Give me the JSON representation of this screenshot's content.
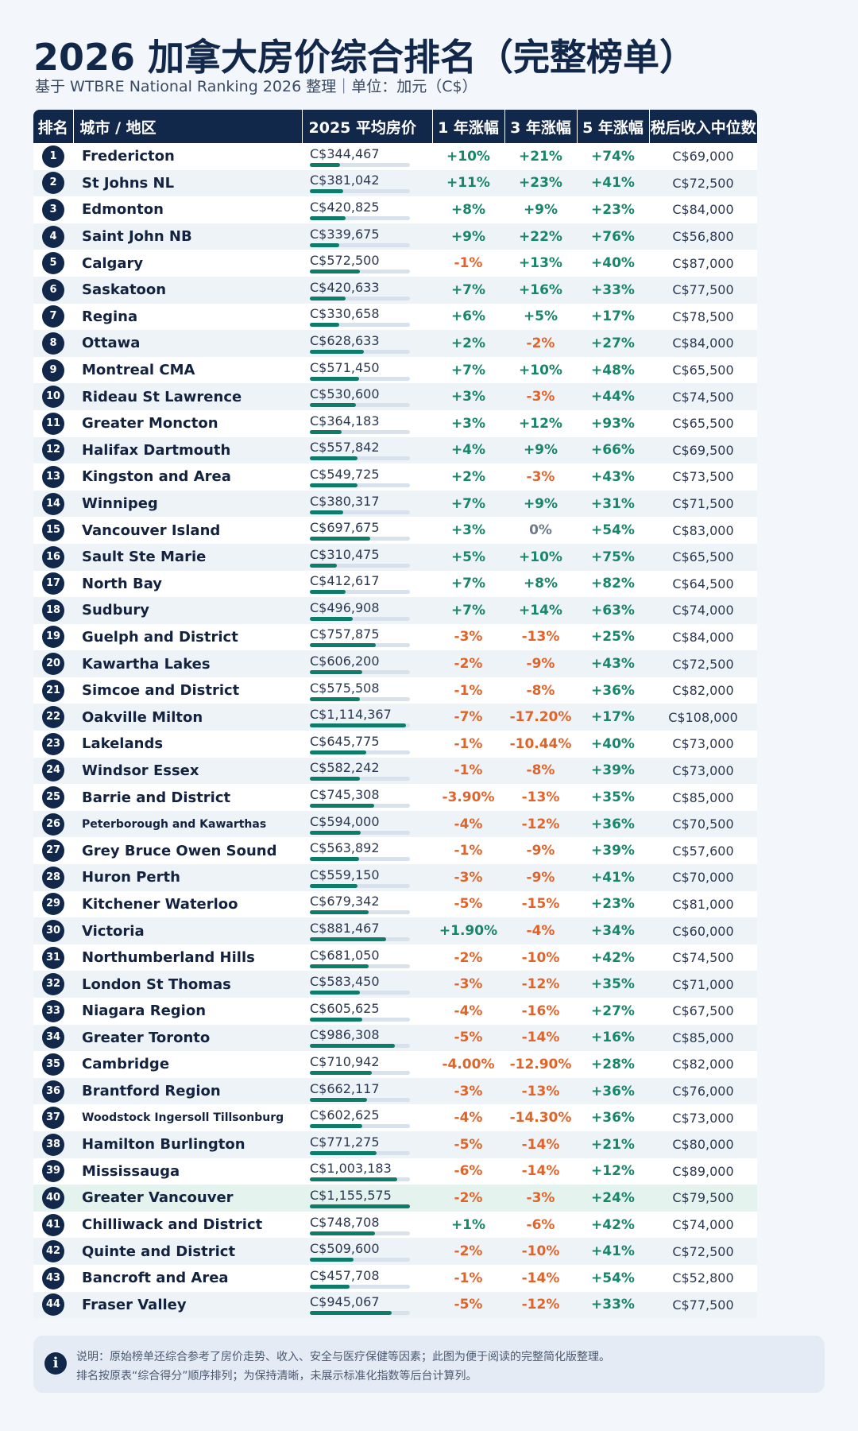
{
  "title": "2026 加拿大房价综合排名（完整榜单）",
  "subtitle": "基于 WTBRE National Ranking 2026 整理｜单位：加元（C$）",
  "table": {
    "headers": [
      "排名",
      "城市 / 地区",
      "2025 平均房价",
      "1 年涨幅",
      "3 年涨幅",
      "5 年涨幅",
      "税后收入中位数"
    ],
    "rows": [
      {
        "rank": "1",
        "city": "Fredericton",
        "price": "C$344,467",
        "price_value": 344467,
        "y1": "+10%",
        "y3": "+21%",
        "y5": "+74%",
        "income": "C$69,000"
      },
      {
        "rank": "2",
        "city": "St Johns NL",
        "price": "C$381,042",
        "price_value": 381042,
        "y1": "+11%",
        "y3": "+23%",
        "y5": "+41%",
        "income": "C$72,500"
      },
      {
        "rank": "3",
        "city": "Edmonton",
        "price": "C$420,825",
        "price_value": 420825,
        "y1": "+8%",
        "y3": "+9%",
        "y5": "+23%",
        "income": "C$84,000"
      },
      {
        "rank": "4",
        "city": "Saint John NB",
        "price": "C$339,675",
        "price_value": 339675,
        "y1": "+9%",
        "y3": "+22%",
        "y5": "+76%",
        "income": "C$56,800"
      },
      {
        "rank": "5",
        "city": "Calgary",
        "price": "C$572,500",
        "price_value": 572500,
        "y1": "-1%",
        "y3": "+13%",
        "y5": "+40%",
        "income": "C$87,000"
      },
      {
        "rank": "6",
        "city": "Saskatoon",
        "price": "C$420,633",
        "price_value": 420633,
        "y1": "+7%",
        "y3": "+16%",
        "y5": "+33%",
        "income": "C$77,500"
      },
      {
        "rank": "7",
        "city": "Regina",
        "price": "C$330,658",
        "price_value": 330658,
        "y1": "+6%",
        "y3": "+5%",
        "y5": "+17%",
        "income": "C$78,500"
      },
      {
        "rank": "8",
        "city": "Ottawa",
        "price": "C$628,633",
        "price_value": 628633,
        "y1": "+2%",
        "y3": "-2%",
        "y5": "+27%",
        "income": "C$84,000"
      },
      {
        "rank": "9",
        "city": "Montreal CMA",
        "price": "C$571,450",
        "price_value": 571450,
        "y1": "+7%",
        "y3": "+10%",
        "y5": "+48%",
        "income": "C$65,500"
      },
      {
        "rank": "10",
        "city": "Rideau St Lawrence",
        "price": "C$530,600",
        "price_value": 530600,
        "y1": "+3%",
        "y3": "-3%",
        "y5": "+44%",
        "income": "C$74,500"
      },
      {
        "rank": "11",
        "city": "Greater Moncton",
        "price": "C$364,183",
        "price_value": 364183,
        "y1": "+3%",
        "y3": "+12%",
        "y5": "+93%",
        "income": "C$65,500"
      },
      {
        "rank": "12",
        "city": "Halifax Dartmouth",
        "price": "C$557,842",
        "price_value": 557842,
        "y1": "+4%",
        "y3": "+9%",
        "y5": "+66%",
        "income": "C$69,500"
      },
      {
        "rank": "13",
        "city": "Kingston and Area",
        "price": "C$549,725",
        "price_value": 549725,
        "y1": "+2%",
        "y3": "-3%",
        "y5": "+43%",
        "income": "C$73,500"
      },
      {
        "rank": "14",
        "city": "Winnipeg",
        "price": "C$380,317",
        "price_value": 380317,
        "y1": "+7%",
        "y3": "+9%",
        "y5": "+31%",
        "income": "C$71,500"
      },
      {
        "rank": "15",
        "city": "Vancouver Island",
        "price": "C$697,675",
        "price_value": 697675,
        "y1": "+3%",
        "y3": "0%",
        "y5": "+54%",
        "income": "C$83,000"
      },
      {
        "rank": "16",
        "city": "Sault Ste Marie",
        "price": "C$310,475",
        "price_value": 310475,
        "y1": "+5%",
        "y3": "+10%",
        "y5": "+75%",
        "income": "C$65,500"
      },
      {
        "rank": "17",
        "city": "North Bay",
        "price": "C$412,617",
        "price_value": 412617,
        "y1": "+7%",
        "y3": "+8%",
        "y5": "+82%",
        "income": "C$64,500"
      },
      {
        "rank": "18",
        "city": "Sudbury",
        "price": "C$496,908",
        "price_value": 496908,
        "y1": "+7%",
        "y3": "+14%",
        "y5": "+63%",
        "income": "C$74,000"
      },
      {
        "rank": "19",
        "city": "Guelph and District",
        "price": "C$757,875",
        "price_value": 757875,
        "y1": "-3%",
        "y3": "-13%",
        "y5": "+25%",
        "income": "C$84,000"
      },
      {
        "rank": "20",
        "city": "Kawartha Lakes",
        "price": "C$606,200",
        "price_value": 606200,
        "y1": "-2%",
        "y3": "-9%",
        "y5": "+43%",
        "income": "C$72,500"
      },
      {
        "rank": "21",
        "city": "Simcoe and District",
        "price": "C$575,508",
        "price_value": 575508,
        "y1": "-1%",
        "y3": "-8%",
        "y5": "+36%",
        "income": "C$82,000"
      },
      {
        "rank": "22",
        "city": "Oakville Milton",
        "price": "C$1,114,367",
        "price_value": 1114367,
        "y1": "-7%",
        "y3": "-17.20%",
        "y5": "+17%",
        "income": "C$108,000"
      },
      {
        "rank": "23",
        "city": "Lakelands",
        "price": "C$645,775",
        "price_value": 645775,
        "y1": "-1%",
        "y3": "-10.44%",
        "y5": "+40%",
        "income": "C$73,000"
      },
      {
        "rank": "24",
        "city": "Windsor Essex",
        "price": "C$582,242",
        "price_value": 582242,
        "y1": "-1%",
        "y3": "-8%",
        "y5": "+39%",
        "income": "C$73,000"
      },
      {
        "rank": "25",
        "city": "Barrie and District",
        "price": "C$745,308",
        "price_value": 745308,
        "y1": "-3.90%",
        "y3": "-13%",
        "y5": "+35%",
        "income": "C$85,000"
      },
      {
        "rank": "26",
        "city": "Peterborough and Kawarthas",
        "price": "C$594,000",
        "price_value": 594000,
        "y1": "-4%",
        "y3": "-12%",
        "y5": "+36%",
        "income": "C$70,500",
        "small": true
      },
      {
        "rank": "27",
        "city": "Grey Bruce Owen Sound",
        "price": "C$563,892",
        "price_value": 563892,
        "y1": "-1%",
        "y3": "-9%",
        "y5": "+39%",
        "income": "C$57,600"
      },
      {
        "rank": "28",
        "city": "Huron Perth",
        "price": "C$559,150",
        "price_value": 559150,
        "y1": "-3%",
        "y3": "-9%",
        "y5": "+41%",
        "income": "C$70,000"
      },
      {
        "rank": "29",
        "city": "Kitchener Waterloo",
        "price": "C$679,342",
        "price_value": 679342,
        "y1": "-5%",
        "y3": "-15%",
        "y5": "+23%",
        "income": "C$81,000"
      },
      {
        "rank": "30",
        "city": "Victoria",
        "price": "C$881,467",
        "price_value": 881467,
        "y1": "+1.90%",
        "y3": "-4%",
        "y5": "+34%",
        "income": "C$60,000"
      },
      {
        "rank": "31",
        "city": "Northumberland Hills",
        "price": "C$681,050",
        "price_value": 681050,
        "y1": "-2%",
        "y3": "-10%",
        "y5": "+42%",
        "income": "C$74,500"
      },
      {
        "rank": "32",
        "city": "London St Thomas",
        "price": "C$583,450",
        "price_value": 583450,
        "y1": "-3%",
        "y3": "-12%",
        "y5": "+35%",
        "income": "C$71,000"
      },
      {
        "rank": "33",
        "city": "Niagara Region",
        "price": "C$605,625",
        "price_value": 605625,
        "y1": "-4%",
        "y3": "-16%",
        "y5": "+27%",
        "income": "C$67,500"
      },
      {
        "rank": "34",
        "city": "Greater Toronto",
        "price": "C$986,308",
        "price_value": 986308,
        "y1": "-5%",
        "y3": "-14%",
        "y5": "+16%",
        "income": "C$85,000"
      },
      {
        "rank": "35",
        "city": "Cambridge",
        "price": "C$710,942",
        "price_value": 710942,
        "y1": "-4.00%",
        "y3": "-12.90%",
        "y5": "+28%",
        "income": "C$82,000"
      },
      {
        "rank": "36",
        "city": "Brantford Region",
        "price": "C$662,117",
        "price_value": 662117,
        "y1": "-3%",
        "y3": "-13%",
        "y5": "+36%",
        "income": "C$76,000"
      },
      {
        "rank": "37",
        "city": "Woodstock Ingersoll Tillsonburg",
        "price": "C$602,625",
        "price_value": 602625,
        "y1": "-4%",
        "y3": "-14.30%",
        "y5": "+36%",
        "income": "C$73,000",
        "small": true
      },
      {
        "rank": "38",
        "city": "Hamilton Burlington",
        "price": "C$771,275",
        "price_value": 771275,
        "y1": "-5%",
        "y3": "-14%",
        "y5": "+21%",
        "income": "C$80,000"
      },
      {
        "rank": "39",
        "city": "Mississauga",
        "price": "C$1,003,183",
        "price_value": 1003183,
        "y1": "-6%",
        "y3": "-14%",
        "y5": "+12%",
        "income": "C$89,000"
      },
      {
        "rank": "40",
        "city": "Greater Vancouver",
        "price": "C$1,155,575",
        "price_value": 1155575,
        "y1": "-2%",
        "y3": "-3%",
        "y5": "+24%",
        "income": "C$79,500",
        "highlight": true
      },
      {
        "rank": "41",
        "city": "Chilliwack and District",
        "price": "C$748,708",
        "price_value": 748708,
        "y1": "+1%",
        "y3": "-6%",
        "y5": "+42%",
        "income": "C$74,000"
      },
      {
        "rank": "42",
        "city": "Quinte and District",
        "price": "C$509,600",
        "price_value": 509600,
        "y1": "-2%",
        "y3": "-10%",
        "y5": "+41%",
        "income": "C$72,500"
      },
      {
        "rank": "43",
        "city": "Bancroft and Area",
        "price": "C$457,708",
        "price_value": 457708,
        "y1": "-1%",
        "y3": "-14%",
        "y5": "+54%",
        "income": "C$52,800"
      },
      {
        "rank": "44",
        "city": "Fraser Valley",
        "price": "C$945,067",
        "price_value": 945067,
        "y1": "-5%",
        "y3": "-12%",
        "y5": "+33%",
        "income": "C$77,500"
      }
    ]
  },
  "note": {
    "icon": "info-icon",
    "line1": "说明：原始榜单还综合参考了房价走势、收入、安全与医疗保健等因素；此图为便于阅读的完整简化版整理。",
    "line2": "排名按原表“综合得分”顺序排列；为保持清晰，未展示标准化指数等后台计算列。"
  },
  "colors": {
    "navy": "#12284b",
    "positive": "#17866b",
    "negative": "#e0642a",
    "bar": "#0e7c6b",
    "highlight_row": "#e5f3ee"
  }
}
